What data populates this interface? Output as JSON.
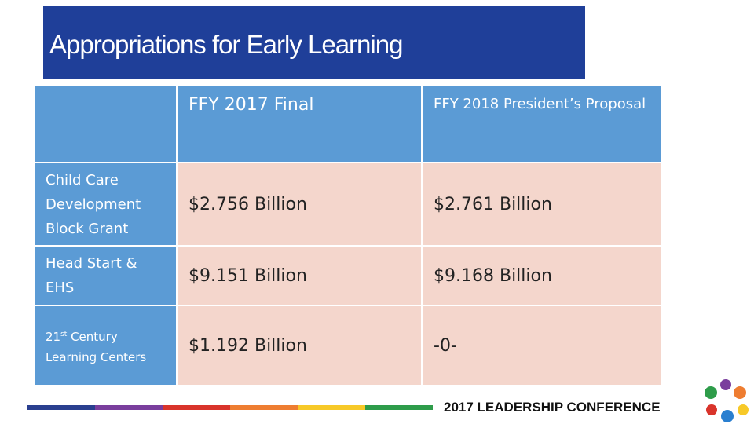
{
  "title": "Appropriations for Early Learning",
  "table": {
    "header": [
      "FFY 2017 Final",
      "FFY 2018 President’s Proposal"
    ],
    "rows": [
      {
        "label": [
          "Child Care Development Block Grant"
        ],
        "cells": [
          "$2.756 Billion",
          "$2.761 Billion"
        ]
      },
      {
        "label": [
          "Head Start & EHS"
        ],
        "cells": [
          "$9.151 Billion",
          "$9.168 Billion"
        ]
      },
      {
        "label": [
          "21",
          "st",
          " Century Learning Centers"
        ],
        "cells": [
          "$1.192 Billion",
          "-0-"
        ]
      }
    ]
  },
  "footer": "2017 LEADERSHIP CONFERENCE"
}
